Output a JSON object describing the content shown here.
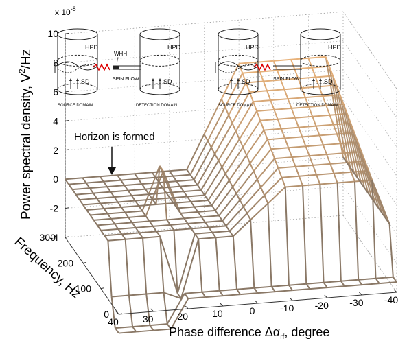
{
  "chart_data": {
    "type": "surface",
    "title": "",
    "zlabel": "Power spectral density, V²/Hz",
    "zlabel_base": "Power spectral density, V",
    "zlabel_sup": "2",
    "zlabel_tail": "/Hz",
    "z_multiplier": "x 10",
    "z_multiplier_exp": "-8",
    "xlabel": "Phase difference Δα",
    "xlabel_base": "Phase difference Δα",
    "xlabel_sub": "rf",
    "xlabel_tail": ", degree",
    "ylabel": "Frequency, Hz",
    "xlim": [
      40,
      -40
    ],
    "ylim": [
      0,
      300
    ],
    "zlim": [
      -4,
      10
    ],
    "x_ticks": [
      "40",
      "30",
      "20",
      "10",
      "0",
      "-10",
      "-20",
      "-30",
      "-40"
    ],
    "y_ticks": [
      "0",
      "100",
      "200",
      "300"
    ],
    "z_ticks": [
      "10",
      "8",
      "6",
      "4",
      "2",
      "0",
      "-2",
      "-4"
    ],
    "grid": true,
    "annotation": "Horizon is formed",
    "surface_color": "#8a7866",
    "peak_color": "#e8b27a",
    "features": [
      {
        "x_deg": 20,
        "freq_hz": 150,
        "z_1e8": 0,
        "note": "narrow spike"
      },
      {
        "x_deg": 20,
        "freq_hz": 50,
        "z_1e8": -6,
        "note": "deep dip"
      },
      {
        "x_deg": -20,
        "freq_hz": 250,
        "z_1e8": 6.5,
        "note": "broad plateau maximum"
      }
    ]
  },
  "insets": [
    {
      "source_label": "SOURCE DOMAIN",
      "detection_label": "DETECTION DOMAIN",
      "flow_label": "SPIN FLOW",
      "link_label": "WHH",
      "hpd_label": "HPD",
      "sd_label": "SD"
    },
    {
      "source_label": "SOURCE DOMAIN",
      "detection_label": "DETECTION DOMAIN",
      "flow_label": "SPIN FLOW",
      "hpd_label": "HPD",
      "sd_label": "SD"
    }
  ]
}
